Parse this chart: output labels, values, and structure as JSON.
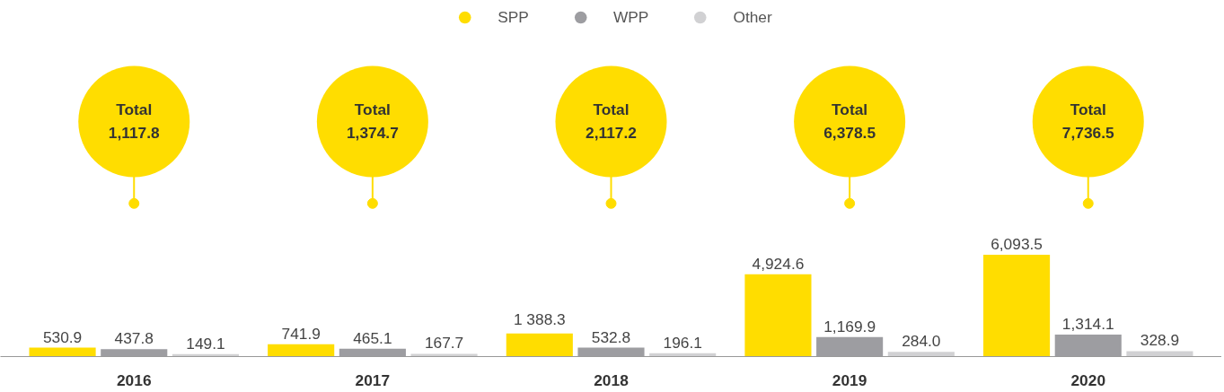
{
  "chart_data": {
    "type": "bar",
    "categories": [
      "2016",
      "2017",
      "2018",
      "2019",
      "2020"
    ],
    "series": [
      {
        "name": "SPP",
        "color": "#ffdd00",
        "values": [
          530.9,
          741.9,
          1388.3,
          4924.6,
          6093.5
        ],
        "value_labels": [
          "530.9",
          "741.9",
          "1 388.3",
          "4,924.6",
          "6,093.5"
        ]
      },
      {
        "name": "WPP",
        "color": "#9d9da1",
        "values": [
          437.8,
          465.1,
          532.8,
          1169.9,
          1314.1
        ],
        "value_labels": [
          "437.8",
          "465.1",
          "532.8",
          "1,169.9",
          "1,314.1"
        ]
      },
      {
        "name": "Other",
        "color": "#d1d1d3",
        "values": [
          149.1,
          167.7,
          196.1,
          284.0,
          328.9
        ],
        "value_labels": [
          "149.1",
          "167.7",
          "196.1",
          "284.0",
          "328.9"
        ]
      }
    ],
    "annotations": [
      "Total\n1,117.8",
      "Total\n1,374.7",
      "Total\n2,117.2",
      "Total\n6,378.5",
      "Total\n7,736.5"
    ],
    "legend": "top"
  }
}
